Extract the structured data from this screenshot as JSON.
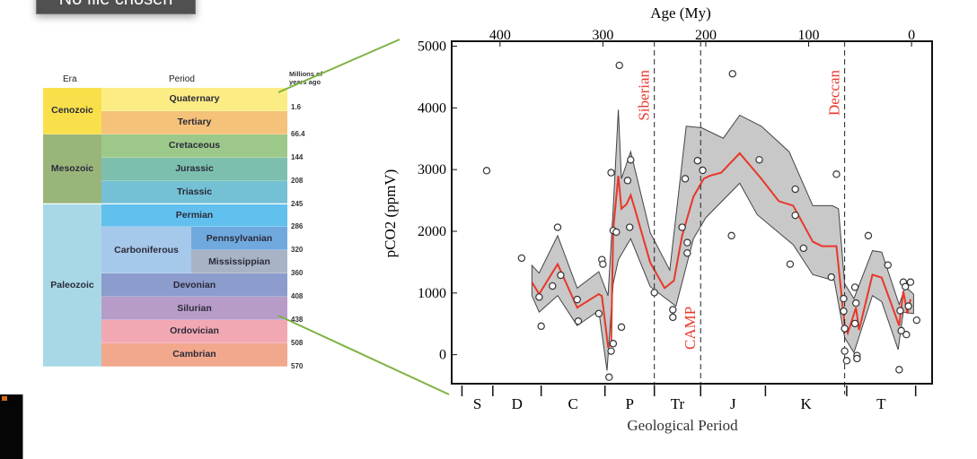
{
  "file_input": {
    "label": "No file chosen"
  },
  "table": {
    "headers": {
      "era": "Era",
      "period": "Period",
      "mya": "Millions of years ago"
    },
    "eras": [
      {
        "name": "Cenozoic",
        "color": "#f9e04b",
        "rows": 2
      },
      {
        "name": "Mesozoic",
        "color": "#9ab57a",
        "rows": 3
      },
      {
        "name": "Paleozoic",
        "color": "#a8d8e6",
        "rows": 7
      }
    ],
    "periods": [
      {
        "name": "Quaternary",
        "color": "#fcec84"
      },
      {
        "name": "Tertiary",
        "color": "#f5c27a"
      },
      {
        "name": "Cretaceous",
        "color": "#9cc98a"
      },
      {
        "name": "Jurassic",
        "color": "#7dbfae"
      },
      {
        "name": "Triassic",
        "color": "#74c0d4"
      },
      {
        "name": "Permian",
        "color": "#62c0ee"
      },
      {
        "name": "Carboniferous",
        "color": "#a6c8ea",
        "sub": [
          {
            "name": "Pennsylvanian",
            "color": "#6fa9de"
          },
          {
            "name": "Mississippian",
            "color": "#a8b3c6"
          }
        ]
      },
      {
        "name": "Devonian",
        "color": "#8c9ccc"
      },
      {
        "name": "Silurian",
        "color": "#b79cc8"
      },
      {
        "name": "Ordovician",
        "color": "#f2a8b2"
      },
      {
        "name": "Cambrian",
        "color": "#f2a88c"
      }
    ],
    "boundaries": [
      "1.6",
      "66.4",
      "144",
      "208",
      "245",
      "286",
      "320",
      "360",
      "408",
      "438",
      "508",
      "570"
    ]
  },
  "chart_data": {
    "type": "line",
    "xlabel_top": "Age (My)",
    "xlabel_bottom": "Geological Period",
    "ylabel": "pCO2 (ppmV)",
    "xlim": [
      447,
      -20
    ],
    "ylim": [
      -470,
      5080
    ],
    "xticks": [
      400,
      300,
      200,
      100,
      0
    ],
    "yticks": [
      0,
      1000,
      2000,
      3000,
      4000,
      5000
    ],
    "grid": false,
    "colors": {
      "median": "#e8382a",
      "band": "#c8c8c8",
      "band_edge": "#444444",
      "event": "#e8382a"
    },
    "periods": {
      "labels": [
        "S",
        "D",
        "C",
        "P",
        "Tr",
        "J",
        "K",
        "T"
      ],
      "boundaries": [
        437,
        407,
        360,
        298,
        250,
        205,
        142,
        63,
        -4
      ]
    },
    "events": [
      {
        "name": "Siberian",
        "age": 250,
        "label_pos": "top"
      },
      {
        "name": "CAMP",
        "age": 205,
        "label_pos": "bottom"
      },
      {
        "name": "Deccan",
        "age": 65,
        "label_pos": "top"
      }
    ],
    "median": [
      [
        369,
        1176
      ],
      [
        362,
        982
      ],
      [
        344,
        1467
      ],
      [
        325,
        763
      ],
      [
        304,
        982
      ],
      [
        301,
        950
      ],
      [
        295,
        131
      ],
      [
        292,
        150
      ],
      [
        290,
        2026
      ],
      [
        285,
        2900
      ],
      [
        282,
        2366
      ],
      [
        277,
        2439
      ],
      [
        273,
        2585
      ],
      [
        269,
        2366
      ],
      [
        254,
        1492
      ],
      [
        240,
        1079
      ],
      [
        231,
        1200
      ],
      [
        223,
        1929
      ],
      [
        212,
        2560
      ],
      [
        202,
        2852
      ],
      [
        196,
        2900
      ],
      [
        185,
        2950
      ],
      [
        167,
        3265
      ],
      [
        146,
        2852
      ],
      [
        129,
        2488
      ],
      [
        115,
        2415
      ],
      [
        96,
        1832
      ],
      [
        87,
        1759
      ],
      [
        73,
        1759
      ],
      [
        65,
        471
      ],
      [
        62,
        350
      ],
      [
        54,
        763
      ],
      [
        51,
        400
      ],
      [
        38,
        1297
      ],
      [
        29,
        1249
      ],
      [
        12,
        471
      ],
      [
        8,
        1030
      ],
      [
        4,
        666
      ],
      [
        1,
        900
      ]
    ],
    "upper": [
      [
        369,
        1447
      ],
      [
        362,
        1322
      ],
      [
        344,
        1929
      ],
      [
        325,
        1079
      ],
      [
        304,
        1346
      ],
      [
        295,
        957
      ],
      [
        290,
        2366
      ],
      [
        285,
        3970
      ],
      [
        282,
        2852
      ],
      [
        273,
        3290
      ],
      [
        254,
        1978
      ],
      [
        235,
        1370
      ],
      [
        219,
        3703
      ],
      [
        204,
        3678
      ],
      [
        183,
        3508
      ],
      [
        167,
        3882
      ],
      [
        146,
        3703
      ],
      [
        119,
        3290
      ],
      [
        96,
        2415
      ],
      [
        77,
        2415
      ],
      [
        71,
        2366
      ],
      [
        65,
        1152
      ],
      [
        56,
        909
      ],
      [
        38,
        1686
      ],
      [
        29,
        1662
      ],
      [
        12,
        811
      ],
      [
        6,
        1103
      ],
      [
        -2,
        982
      ]
    ],
    "lower": [
      [
        369,
        957
      ],
      [
        362,
        690
      ],
      [
        344,
        957
      ],
      [
        325,
        471
      ],
      [
        304,
        714
      ],
      [
        296,
        -258
      ],
      [
        290,
        1152
      ],
      [
        285,
        1540
      ],
      [
        273,
        1880
      ],
      [
        254,
        1103
      ],
      [
        229,
        787
      ],
      [
        212,
        1880
      ],
      [
        200,
        2220
      ],
      [
        167,
        2779
      ],
      [
        150,
        2269
      ],
      [
        115,
        1783
      ],
      [
        96,
        1297
      ],
      [
        75,
        1200
      ],
      [
        65,
        277
      ],
      [
        56,
        34
      ],
      [
        38,
        957
      ],
      [
        29,
        860
      ],
      [
        13,
        83
      ],
      [
        8,
        690
      ],
      [
        -2,
        666
      ]
    ],
    "points": [
      [
        413,
        2983
      ],
      [
        379,
        1565
      ],
      [
        362,
        933
      ],
      [
        360,
        462
      ],
      [
        349,
        1113
      ],
      [
        344,
        2065
      ],
      [
        341,
        1288
      ],
      [
        325,
        894
      ],
      [
        324,
        544
      ],
      [
        304,
        666
      ],
      [
        301,
        1540
      ],
      [
        300,
        1467
      ],
      [
        292,
        2950
      ],
      [
        292,
        58
      ],
      [
        290,
        180
      ],
      [
        294,
        -364
      ],
      [
        290,
        2012
      ],
      [
        287,
        1987
      ],
      [
        284,
        4689
      ],
      [
        282,
        447
      ],
      [
        276,
        2823
      ],
      [
        274,
        2065
      ],
      [
        273,
        3158
      ],
      [
        250,
        1006
      ],
      [
        232,
        729
      ],
      [
        232,
        607
      ],
      [
        223,
        2065
      ],
      [
        220,
        2852
      ],
      [
        218,
        1817
      ],
      [
        218,
        1647
      ],
      [
        208,
        3144
      ],
      [
        203,
        2988
      ],
      [
        174,
        4553
      ],
      [
        175,
        1929
      ],
      [
        148,
        3158
      ],
      [
        118,
        1467
      ],
      [
        113,
        2682
      ],
      [
        113,
        2259
      ],
      [
        105,
        1725
      ],
      [
        78,
        1258
      ],
      [
        73,
        2925
      ],
      [
        66,
        909
      ],
      [
        66,
        705
      ],
      [
        65,
        423
      ],
      [
        65,
        58
      ],
      [
        63,
        -97
      ],
      [
        55,
        1093
      ],
      [
        54,
        836
      ],
      [
        55,
        505
      ],
      [
        53,
        -15
      ],
      [
        53,
        -63
      ],
      [
        42,
        1929
      ],
      [
        23,
        1453
      ],
      [
        12,
        -243
      ],
      [
        11,
        714
      ],
      [
        10,
        389
      ],
      [
        8,
        1176
      ],
      [
        6,
        1103
      ],
      [
        5,
        326
      ],
      [
        3,
        787
      ],
      [
        1,
        1176
      ],
      [
        -5,
        559
      ]
    ]
  }
}
